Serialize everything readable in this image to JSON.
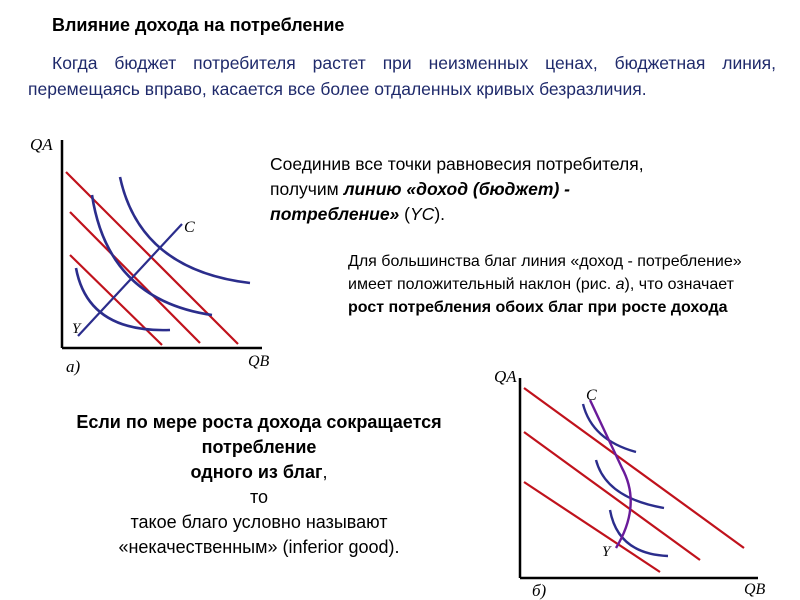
{
  "title": "Влияние дохода на потребление",
  "intro": "Когда бюджет потребителя растет при неизменных ценах, бюджетная линия, перемещаясь вправо, касается все более отдаленных кривых безразличия.",
  "note1": {
    "part1": "Соединив все точки равновесия потребителя, получим ",
    "term": "линию «доход (бюджет) - потребление»",
    "part2": " (",
    "abbr": "YC",
    "part3": ")."
  },
  "note2": {
    "part1": "Для большинства благ линия «доход - потребление» имеет положительный наклон (рис. ",
    "fig": "а",
    "part2": "), что означает ",
    "bold": "рост потребления обоих благ при росте дохода"
  },
  "note3": {
    "bold1": "Если по мере роста дохода сокращается потребление",
    "bold2": "одного из благ",
    "comma": ",",
    "line3": "то",
    "line4": "такое благо условно называют",
    "line5": "«некачественным» (inferior good)."
  },
  "diagram_a": {
    "y_axis_label": "QA",
    "x_axis_label": "QB",
    "panel_label": "а)",
    "curve_label_c": "C",
    "curve_label_y": "Y"
  },
  "diagram_b": {
    "y_axis_label": "QA",
    "x_axis_label": "QB",
    "panel_label": "б)",
    "curve_label_c": "C",
    "curve_label_y": "Y"
  },
  "colors": {
    "axis": "#000000",
    "budget_line": "#c0121c",
    "indifference_curve": "#2b2d8c",
    "income_consumption_line": "#6a1b9a",
    "intro_text": "#1f2a6b"
  }
}
